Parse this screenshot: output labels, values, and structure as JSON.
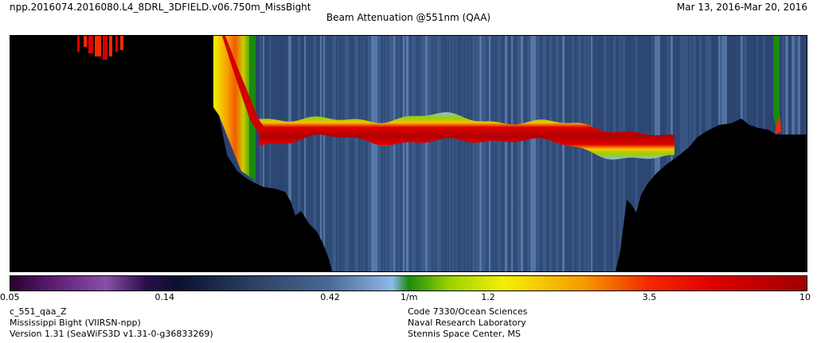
{
  "header": {
    "file_name": "npp.2016074.2016080.L4_8DRL_3DFIELD.v06.750m_MissBight",
    "date_range": "Mar 13, 2016-Mar 20, 2016",
    "title": "Beam Attenuation @551nm (QAA)"
  },
  "colors": {
    "background": "#ffffff",
    "land_mask": "#000000",
    "water_low": "#2f4f7a",
    "max_band": "#b80000"
  },
  "colorbar": {
    "scale": "log",
    "min": 0.05,
    "max": 10,
    "ticks": [
      {
        "value": 0.05,
        "label": "0.05"
      },
      {
        "value": 0.14,
        "label": "0.14"
      },
      {
        "value": 0.42,
        "label": "0.42"
      },
      {
        "value": 0.71,
        "label": "1/m"
      },
      {
        "value": 1.2,
        "label": "1.2"
      },
      {
        "value": 3.5,
        "label": "3.5"
      },
      {
        "value": 10,
        "label": "10"
      }
    ],
    "stops": [
      {
        "offset": 0.0,
        "color": "#2a0030"
      },
      {
        "offset": 0.05,
        "color": "#5a1a6e"
      },
      {
        "offset": 0.12,
        "color": "#8a4fa8"
      },
      {
        "offset": 0.17,
        "color": "#2a0e4a"
      },
      {
        "offset": 0.21,
        "color": "#0a1030"
      },
      {
        "offset": 0.3,
        "color": "#2a3e60"
      },
      {
        "offset": 0.4,
        "color": "#4a6a96"
      },
      {
        "offset": 0.48,
        "color": "#8fb8e8"
      },
      {
        "offset": 0.5,
        "color": "#1a8a10"
      },
      {
        "offset": 0.55,
        "color": "#9ad000"
      },
      {
        "offset": 0.62,
        "color": "#f5f000"
      },
      {
        "offset": 0.72,
        "color": "#f59a00"
      },
      {
        "offset": 0.8,
        "color": "#f52a00"
      },
      {
        "offset": 0.88,
        "color": "#e00000"
      },
      {
        "offset": 1.0,
        "color": "#a00000"
      }
    ]
  },
  "footer": {
    "left": [
      "c_551_qaa_Z",
      "Mississippi Bight (VIIRSN-npp)",
      "Version 1.31 (SeaWiFS3D v1.31-0-g36833269)"
    ],
    "right": [
      "Code 7330/Ocean Sciences",
      "Naval Research Laboratory",
      "Stennis Space Center, MS"
    ]
  },
  "chart_data": {
    "type": "heatmap",
    "title": "Beam Attenuation @551nm (QAA)",
    "units": "1/m",
    "color_scale": "log",
    "value_range": [
      0.05,
      10
    ],
    "description_of_values": {
      "background_water": 0.35,
      "maximum_layer": 8.0,
      "nearshore_surface_left": 4.0
    }
  }
}
